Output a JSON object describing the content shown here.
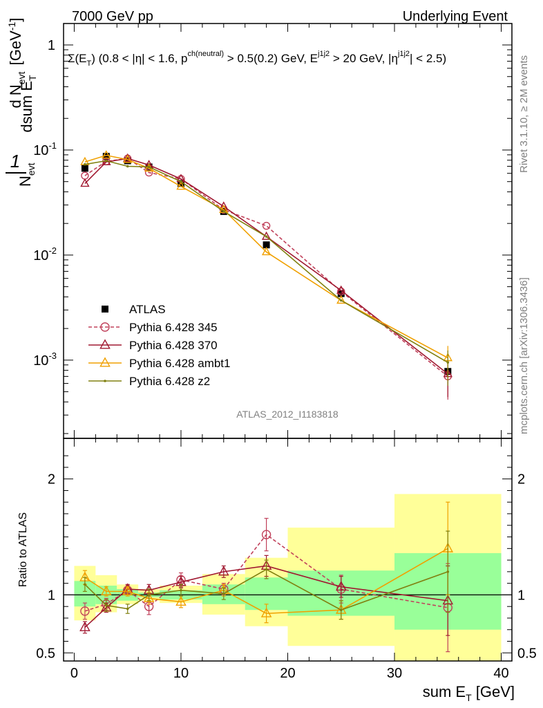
{
  "header": {
    "left": "7000 GeV pp",
    "right": "Underlying Event"
  },
  "side_labels": {
    "rivet": "Rivet 3.1.10, ≥ 2M events",
    "mcplots": "mcplots.cern.ch [arXiv:1306.3436]"
  },
  "analysis_tag": "ATLAS_2012_I1183818",
  "chart_data": [
    {
      "panel": "main",
      "type": "line",
      "log_y": true,
      "title": "Σ(E_T) (0.8 < |η| < 1.6, p_T^ch(neutral) > 0.5(0.2) GeV, E_T^j1j2 > 20 GeV, |η^j1j2| < 2.5)",
      "ylabel": "1/N_evt dN_evt/dsum E_T [GeV^-1]",
      "xlabel": "",
      "xlim": [
        -1,
        41
      ],
      "ylim": [
        0.00018,
        1.6
      ],
      "y_tick_labels": [
        "10^-3",
        "10^-2",
        "10^-1",
        "1"
      ],
      "legend_position": "lower-left",
      "series": [
        {
          "name": "ATLAS",
          "color": "#000000",
          "marker": "filled-square",
          "x": [
            1,
            3,
            5,
            7,
            10,
            14,
            18,
            25,
            35
          ],
          "y": [
            0.067,
            0.087,
            0.079,
            0.069,
            0.048,
            0.026,
            0.0125,
            0.0043,
            0.00078
          ]
        },
        {
          "name": "Pythia 6.428 345",
          "color": "#c0405a",
          "marker": "open-circle",
          "dashed": true,
          "x": [
            1,
            3,
            5,
            7,
            10,
            14,
            18,
            25,
            35
          ],
          "y": [
            0.057,
            0.078,
            0.083,
            0.061,
            0.053,
            0.027,
            0.019,
            0.0045,
            0.0007
          ]
        },
        {
          "name": "Pythia 6.428 370",
          "color": "#a01830",
          "marker": "open-triangle",
          "x": [
            1,
            3,
            5,
            7,
            10,
            14,
            18,
            25,
            35
          ],
          "y": [
            0.048,
            0.077,
            0.083,
            0.072,
            0.053,
            0.029,
            0.015,
            0.0046,
            0.00074
          ]
        },
        {
          "name": "Pythia 6.428 ambt1",
          "color": "#f0a000",
          "marker": "open-triangle",
          "x": [
            1,
            3,
            5,
            7,
            10,
            14,
            18,
            25,
            35
          ],
          "y": [
            0.077,
            0.089,
            0.081,
            0.067,
            0.045,
            0.027,
            0.0107,
            0.0037,
            0.00105
          ]
        },
        {
          "name": "Pythia 6.428 z2",
          "color": "#808010",
          "marker": "dot",
          "x": [
            1,
            3,
            5,
            7,
            10,
            14,
            18,
            25,
            35
          ],
          "y": [
            0.073,
            0.079,
            0.07,
            0.069,
            0.05,
            0.026,
            0.015,
            0.0037,
            0.00095
          ]
        }
      ]
    },
    {
      "panel": "ratio",
      "type": "line",
      "ylabel": "Ratio to ATLAS",
      "xlabel": "sum E_T [GeV]",
      "xlim": [
        -1,
        41
      ],
      "ylim": [
        0.43,
        2.35
      ],
      "x_ticks": [
        0,
        10,
        20,
        30,
        40
      ],
      "y_ticks": [
        0.5,
        1,
        2
      ],
      "reference_line": 1,
      "uncertainty_bands": {
        "bin_edges": [
          0,
          2,
          4,
          6,
          8,
          12,
          16,
          20,
          30,
          40
        ],
        "stat_color": "#99ff99",
        "total_color": "#ffff99",
        "stat_lo": [
          0.9,
          0.92,
          0.95,
          0.98,
          0.96,
          0.92,
          0.87,
          0.82,
          0.7
        ],
        "stat_hi": [
          1.12,
          1.08,
          1.05,
          1.02,
          1.04,
          1.09,
          1.15,
          1.21,
          1.36
        ],
        "total_lo": [
          0.78,
          0.85,
          0.92,
          0.95,
          0.93,
          0.83,
          0.73,
          0.56,
          0.43
        ],
        "total_hi": [
          1.25,
          1.17,
          1.09,
          1.05,
          1.08,
          1.18,
          1.32,
          1.58,
          1.87
        ]
      },
      "series": [
        {
          "name": "Pythia 6.428 345",
          "color": "#c0405a",
          "marker": "open-circle",
          "dashed": true,
          "x": [
            1,
            3,
            5,
            7,
            10,
            14,
            18,
            25,
            35
          ],
          "y": [
            0.86,
            0.92,
            1.04,
            0.9,
            1.13,
            1.05,
            1.52,
            1.05,
            0.89
          ],
          "err": [
            0.07,
            0.05,
            0.04,
            0.07,
            0.06,
            0.05,
            0.14,
            0.12,
            0.38
          ]
        },
        {
          "name": "Pythia 6.428 370",
          "color": "#a01830",
          "marker": "open-triangle",
          "x": [
            1,
            3,
            5,
            7,
            10,
            14,
            18,
            25,
            35
          ],
          "y": [
            0.72,
            0.89,
            1.05,
            1.04,
            1.11,
            1.2,
            1.25,
            1.07,
            0.95
          ],
          "err": [
            0.05,
            0.04,
            0.04,
            0.05,
            0.05,
            0.05,
            0.09,
            0.09,
            0.3
          ]
        },
        {
          "name": "Pythia 6.428 ambt1",
          "color": "#f0a000",
          "marker": "open-triangle",
          "x": [
            1,
            3,
            5,
            7,
            10,
            14,
            18,
            25,
            35
          ],
          "y": [
            1.15,
            1.03,
            1.03,
            0.97,
            0.94,
            1.04,
            0.84,
            0.87,
            1.4
          ],
          "err": [
            0.06,
            0.04,
            0.04,
            0.05,
            0.05,
            0.05,
            0.08,
            0.08,
            0.4
          ]
        },
        {
          "name": "Pythia 6.428 z2",
          "color": "#808010",
          "marker": "dot",
          "x": [
            1,
            3,
            5,
            7,
            10,
            14,
            18,
            25,
            35
          ],
          "y": [
            1.09,
            0.91,
            0.88,
            1.0,
            1.04,
            1.01,
            1.22,
            0.87,
            1.2
          ],
          "err": [
            0.06,
            0.05,
            0.04,
            0.05,
            0.05,
            0.05,
            0.08,
            0.08,
            0.35
          ]
        }
      ]
    }
  ]
}
